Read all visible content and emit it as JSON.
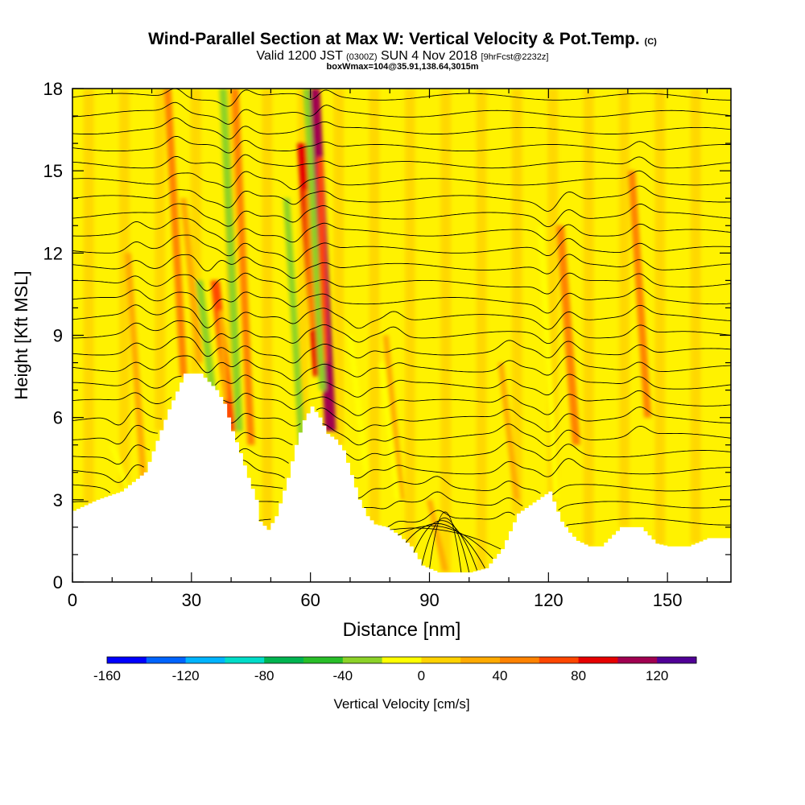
{
  "header": {
    "title": "Wind-Parallel Section at Max W: Vertical Velocity & Pot.Temp.",
    "copyright": "(C)",
    "valid_prefix": "Valid 1200 JST",
    "valid_utc": "(0300Z)",
    "valid_date": "SUN 4 Nov 2018",
    "forecast": "[9hrFcst@2232z]",
    "box_info": "boxWmax=104@35.91,138.64,3015m"
  },
  "chart_data": {
    "type": "heatmap",
    "xlabel": "Distance [nm]",
    "ylabel": "Height [Kft MSL]",
    "xlim": [
      0,
      166
    ],
    "ylim": [
      0,
      18
    ],
    "x_ticks": [
      0,
      30,
      60,
      90,
      120,
      150
    ],
    "y_ticks": [
      0,
      3,
      6,
      9,
      12,
      15,
      18
    ],
    "grid": false,
    "terrain_profile": {
      "x": [
        0,
        6,
        12,
        18,
        24,
        28,
        32,
        34,
        36,
        38,
        40,
        42,
        44,
        46,
        47,
        49,
        51,
        54,
        56,
        58,
        60,
        62,
        64,
        66,
        68,
        70,
        72,
        74,
        76,
        79,
        82,
        85,
        88,
        92,
        96,
        100,
        104,
        108,
        112,
        116,
        120,
        123,
        125,
        127,
        130,
        133,
        138,
        143,
        147,
        150,
        155,
        160,
        166
      ],
      "y": [
        2.6,
        3.0,
        3.3,
        4.0,
        6.3,
        7.6,
        7.6,
        7.3,
        7.0,
        6.5,
        5.5,
        4.7,
        3.8,
        3.0,
        2.2,
        1.9,
        2.4,
        3.8,
        5.0,
        5.9,
        6.4,
        6.0,
        5.4,
        5.2,
        4.8,
        3.9,
        3.0,
        2.4,
        2.1,
        2.0,
        1.7,
        1.3,
        0.6,
        0.35,
        0.35,
        0.35,
        0.5,
        1.2,
        2.5,
        2.9,
        3.3,
        2.2,
        1.8,
        1.5,
        1.3,
        1.3,
        2.0,
        2.0,
        1.4,
        1.3,
        1.3,
        1.6,
        1.6
      ]
    },
    "updrafts": [
      {
        "x": 63,
        "ymin": 5.5,
        "ymax": 18,
        "value": 104
      },
      {
        "x": 60,
        "ymin": 7.5,
        "ymax": 16,
        "value": 80
      },
      {
        "x": 38,
        "ymin": 5.5,
        "ymax": 11,
        "value": 60
      },
      {
        "x": 26,
        "ymin": 7.5,
        "ymax": 18,
        "value": 40
      },
      {
        "x": 43,
        "ymin": 5.0,
        "ymax": 18,
        "value": 40
      },
      {
        "x": 125,
        "ymin": 5.0,
        "ymax": 13,
        "value": 50
      },
      {
        "x": 143,
        "ymin": 6.0,
        "ymax": 15,
        "value": 40
      },
      {
        "x": 16,
        "ymin": 3.5,
        "ymax": 12,
        "value": 30
      },
      {
        "x": 30,
        "ymin": 8.0,
        "ymax": 14,
        "value": 30
      },
      {
        "x": 81,
        "ymin": 3.0,
        "ymax": 9,
        "value": 20
      },
      {
        "x": 92,
        "ymin": 0.4,
        "ymax": 3,
        "value": 20
      },
      {
        "x": 110,
        "ymin": 3.0,
        "ymax": 8,
        "value": 20
      }
    ],
    "downdrafts": [
      {
        "x": 34,
        "ymin": 6.0,
        "ymax": 11,
        "value": -40
      },
      {
        "x": 40,
        "ymin": 5.5,
        "ymax": 18,
        "value": -40
      },
      {
        "x": 56,
        "ymin": 4.5,
        "ymax": 14,
        "value": -30
      },
      {
        "x": 61,
        "ymin": 7.0,
        "ymax": 18,
        "value": -30
      },
      {
        "x": 72,
        "ymin": 4.0,
        "ymax": 9,
        "value": -20
      },
      {
        "x": 80,
        "ymin": 3.0,
        "ymax": 8,
        "value": -20
      },
      {
        "x": 120,
        "ymin": 3.0,
        "ymax": 13,
        "value": -20
      },
      {
        "x": 12,
        "ymin": 3.3,
        "ymax": 5,
        "value": -20
      }
    ],
    "theta_contours": {
      "levels": 27,
      "ramp_count": 6
    },
    "colorbar": {
      "label": "Vertical Velocity [cm/s]",
      "min": -160,
      "max": 140,
      "step": 20,
      "tick_labels": [
        "-160",
        "-120",
        "-80",
        "-40",
        "0",
        "40",
        "80",
        "120"
      ],
      "colors": [
        "#0000ff",
        "#0064ff",
        "#00b4ff",
        "#00dcc8",
        "#00b450",
        "#28be28",
        "#8cd228",
        "#ffff00",
        "#ffd200",
        "#ffaa00",
        "#ff8200",
        "#ff4600",
        "#e60000",
        "#a00050",
        "#500096"
      ]
    }
  }
}
